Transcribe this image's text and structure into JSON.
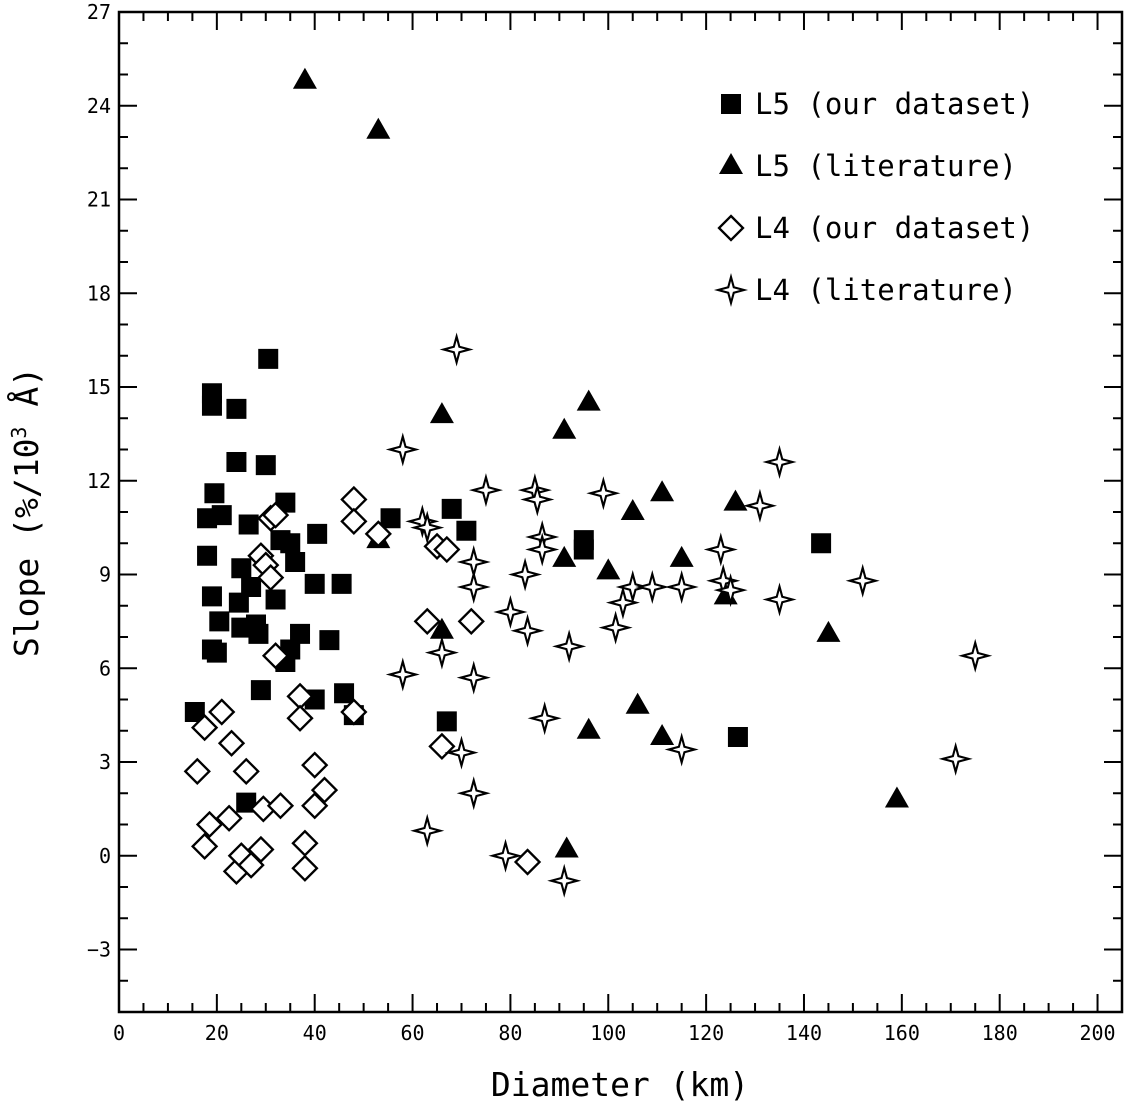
{
  "chart_data": {
    "type": "scatter",
    "title": "",
    "xlabel": "Diameter (km)",
    "ylabel_parts": {
      "main": "Slope (%/10",
      "sup": "3",
      "end": " Å)"
    },
    "xlim": [
      0,
      205
    ],
    "ylim": [
      -5,
      27
    ],
    "xticks": [
      0,
      20,
      40,
      60,
      80,
      100,
      120,
      140,
      160,
      180,
      200
    ],
    "yticks": [
      -3,
      0,
      3,
      6,
      9,
      12,
      15,
      18,
      21,
      24,
      27
    ],
    "xtick_labels": [
      "0",
      "20",
      "40",
      "60",
      "80",
      "100",
      "120",
      "140",
      "160",
      "180",
      "200"
    ],
    "ytick_labels": [
      "−3",
      "0",
      "3",
      "6",
      "9",
      "12",
      "15",
      "18",
      "21",
      "24",
      "27"
    ],
    "grid": false,
    "legend_position": "top-right",
    "series": [
      {
        "name": "L5 (our dataset)",
        "marker": "filled-square",
        "color": "#000000",
        "points": [
          [
            15.5,
            4.6
          ],
          [
            18,
            10.8
          ],
          [
            18,
            9.6
          ],
          [
            19,
            14.8
          ],
          [
            19,
            14.4
          ],
          [
            19,
            8.3
          ],
          [
            19,
            6.6
          ],
          [
            19.5,
            11.6
          ],
          [
            20,
            6.5
          ],
          [
            20.5,
            7.5
          ],
          [
            21,
            10.9
          ],
          [
            24,
            14.3
          ],
          [
            24,
            12.6
          ],
          [
            24.5,
            8.1
          ],
          [
            25,
            9.2
          ],
          [
            25,
            7.3
          ],
          [
            26,
            1.7
          ],
          [
            26.5,
            10.6
          ],
          [
            27,
            8.6
          ],
          [
            28,
            7.4
          ],
          [
            28.5,
            7.1
          ],
          [
            29,
            5.3
          ],
          [
            30,
            12.5
          ],
          [
            30.5,
            15.9
          ],
          [
            32,
            8.2
          ],
          [
            33,
            10.1
          ],
          [
            34,
            11.3
          ],
          [
            34,
            6.2
          ],
          [
            35,
            10.0
          ],
          [
            35,
            6.6
          ],
          [
            36,
            9.4
          ],
          [
            37,
            7.1
          ],
          [
            40,
            8.7
          ],
          [
            40,
            5.0
          ],
          [
            40.5,
            10.3
          ],
          [
            43,
            6.9
          ],
          [
            45.5,
            8.7
          ],
          [
            46,
            5.2
          ],
          [
            48,
            4.5
          ],
          [
            55.5,
            10.8
          ],
          [
            67,
            4.3
          ],
          [
            68,
            11.1
          ],
          [
            71,
            10.4
          ],
          [
            95,
            10.1
          ],
          [
            95,
            9.8
          ],
          [
            126.5,
            3.8
          ],
          [
            143.5,
            10.0
          ]
        ]
      },
      {
        "name": "L5 (literature)",
        "marker": "filled-triangle",
        "color": "#000000",
        "points": [
          [
            38,
            24.8
          ],
          [
            53,
            23.2
          ],
          [
            53,
            10.1
          ],
          [
            66,
            14.1
          ],
          [
            66,
            7.2
          ],
          [
            91,
            13.6
          ],
          [
            91,
            9.5
          ],
          [
            91.5,
            0.2
          ],
          [
            96,
            14.5
          ],
          [
            96,
            4.0
          ],
          [
            100,
            9.1
          ],
          [
            105,
            11.0
          ],
          [
            106,
            4.8
          ],
          [
            111,
            11.6
          ],
          [
            111,
            3.8
          ],
          [
            115,
            9.5
          ],
          [
            124,
            8.3
          ],
          [
            126,
            11.3
          ],
          [
            145,
            7.1
          ],
          [
            159,
            1.8
          ]
        ]
      },
      {
        "name": "L4 (our dataset)",
        "marker": "open-diamond",
        "color": "#000000",
        "points": [
          [
            16,
            2.7
          ],
          [
            17.5,
            0.3
          ],
          [
            17.5,
            4.1
          ],
          [
            18.5,
            1.0
          ],
          [
            21,
            4.6
          ],
          [
            22.5,
            1.2
          ],
          [
            23,
            3.6
          ],
          [
            24,
            -0.5
          ],
          [
            25,
            0.0
          ],
          [
            26,
            2.7
          ],
          [
            27,
            -0.3
          ],
          [
            29,
            9.6
          ],
          [
            29,
            0.2
          ],
          [
            29.5,
            1.5
          ],
          [
            30,
            9.3
          ],
          [
            31,
            8.9
          ],
          [
            31,
            10.8
          ],
          [
            32,
            10.9
          ],
          [
            32,
            6.4
          ],
          [
            33,
            1.6
          ],
          [
            37,
            5.1
          ],
          [
            37,
            4.4
          ],
          [
            38,
            0.4
          ],
          [
            38,
            -0.4
          ],
          [
            40,
            2.9
          ],
          [
            40,
            1.6
          ],
          [
            42,
            2.1
          ],
          [
            48,
            11.4
          ],
          [
            48,
            10.7
          ],
          [
            48,
            4.6
          ],
          [
            53,
            10.3
          ],
          [
            63,
            7.5
          ],
          [
            65,
            9.9
          ],
          [
            66,
            3.5
          ],
          [
            67,
            9.8
          ],
          [
            72,
            7.5
          ],
          [
            83.5,
            -0.2
          ]
        ]
      },
      {
        "name": "L4 (literature)",
        "marker": "open-star",
        "color": "#000000",
        "points": [
          [
            58,
            13.0
          ],
          [
            58,
            5.8
          ],
          [
            62,
            10.7
          ],
          [
            63,
            10.5
          ],
          [
            63,
            0.8
          ],
          [
            66,
            6.5
          ],
          [
            69,
            16.2
          ],
          [
            70,
            3.3
          ],
          [
            72.5,
            9.4
          ],
          [
            72.5,
            8.6
          ],
          [
            72.5,
            5.7
          ],
          [
            72.5,
            2.0
          ],
          [
            75,
            11.7
          ],
          [
            79,
            0.0
          ],
          [
            80,
            7.8
          ],
          [
            83,
            9.0
          ],
          [
            83.5,
            7.2
          ],
          [
            85,
            11.7
          ],
          [
            85.5,
            11.4
          ],
          [
            86.5,
            10.2
          ],
          [
            86.5,
            9.8
          ],
          [
            87,
            4.4
          ],
          [
            91,
            -0.8
          ],
          [
            92,
            6.7
          ],
          [
            99,
            11.6
          ],
          [
            101.5,
            7.3
          ],
          [
            103,
            8.1
          ],
          [
            105,
            8.6
          ],
          [
            109,
            8.6
          ],
          [
            115,
            8.6
          ],
          [
            115,
            3.4
          ],
          [
            123,
            9.8
          ],
          [
            123.5,
            8.8
          ],
          [
            125,
            8.5
          ],
          [
            131,
            11.2
          ],
          [
            135,
            12.6
          ],
          [
            135,
            8.2
          ],
          [
            152,
            8.8
          ],
          [
            171,
            3.1
          ],
          [
            175,
            6.4
          ]
        ]
      }
    ]
  }
}
